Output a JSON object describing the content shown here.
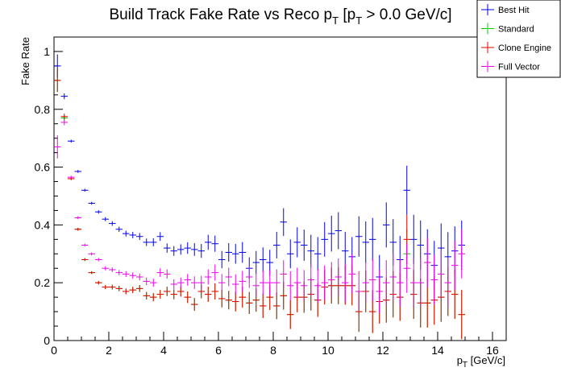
{
  "chart_data": {
    "type": "scatter",
    "title": {
      "main": "Build Track Fake Rate vs Reco p",
      "sub1": "T",
      "mid": " [p",
      "sub2": "T",
      "tail": " > 0.0 GeV/c]"
    },
    "xlabel": {
      "main": "p",
      "sub": "T",
      "tail": " [GeV/c]"
    },
    "ylabel": "Fake Rate",
    "xlim": [
      0,
      16.5
    ],
    "ylim": [
      0,
      1.05
    ],
    "xticks": [
      "0",
      "2",
      "4",
      "6",
      "8",
      "10",
      "12",
      "14",
      "16"
    ],
    "yticks": [
      "0",
      "0.2",
      "0.4",
      "0.6",
      "0.8",
      "1"
    ],
    "legend_position": "top-right",
    "bin_half_width": 0.125,
    "series": [
      {
        "name": "Best Hit",
        "color": "#0000ee",
        "x": [
          0.125,
          0.375,
          0.625,
          0.875,
          1.125,
          1.375,
          1.625,
          1.875,
          2.125,
          2.375,
          2.625,
          2.875,
          3.125,
          3.375,
          3.625,
          3.875,
          4.125,
          4.375,
          4.625,
          4.875,
          5.125,
          5.375,
          5.625,
          5.875,
          6.125,
          6.375,
          6.625,
          6.875,
          7.125,
          7.375,
          7.625,
          7.875,
          8.125,
          8.375,
          8.625,
          8.875,
          9.125,
          9.375,
          9.625,
          9.875,
          10.125,
          10.375,
          10.625,
          10.875,
          11.125,
          11.375,
          11.625,
          11.875,
          12.125,
          12.375,
          12.625,
          12.875,
          13.125,
          13.375,
          13.625,
          13.875,
          14.125,
          14.375,
          14.625,
          14.875
        ],
        "y": [
          0.95,
          0.845,
          0.69,
          0.585,
          0.52,
          0.475,
          0.445,
          0.42,
          0.405,
          0.385,
          0.37,
          0.365,
          0.36,
          0.34,
          0.34,
          0.36,
          0.32,
          0.31,
          0.315,
          0.32,
          0.315,
          0.31,
          0.34,
          0.335,
          0.28,
          0.305,
          0.3,
          0.305,
          0.25,
          0.27,
          0.28,
          0.27,
          0.33,
          0.41,
          0.3,
          0.34,
          0.33,
          0.31,
          0.3,
          0.35,
          0.37,
          0.38,
          0.31,
          0.29,
          0.36,
          0.34,
          0.35,
          0.22,
          0.4,
          0.34,
          0.28,
          0.52,
          0.35,
          0.33,
          0.3,
          0.26,
          0.32,
          0.29,
          0.31,
          0.33
        ],
        "err": [
          0.04,
          0.01,
          0.005,
          0.005,
          0.005,
          0.005,
          0.006,
          0.007,
          0.008,
          0.009,
          0.01,
          0.011,
          0.012,
          0.013,
          0.014,
          0.015,
          0.016,
          0.017,
          0.018,
          0.02,
          0.022,
          0.024,
          0.026,
          0.028,
          0.03,
          0.032,
          0.034,
          0.036,
          0.038,
          0.04,
          0.042,
          0.044,
          0.046,
          0.048,
          0.05,
          0.052,
          0.054,
          0.056,
          0.058,
          0.06,
          0.062,
          0.064,
          0.066,
          0.068,
          0.07,
          0.072,
          0.074,
          0.076,
          0.078,
          0.08,
          0.082,
          0.085,
          0.085,
          0.085,
          0.085,
          0.085,
          0.085,
          0.085,
          0.085,
          0.085
        ]
      },
      {
        "name": "Standard",
        "color": "#00cc00",
        "x": [
          0.125,
          0.375,
          0.625,
          0.875,
          1.125,
          1.375,
          1.625,
          1.875,
          2.125,
          2.375,
          2.625,
          2.875,
          3.125,
          3.375,
          3.625,
          3.875,
          4.125,
          4.375,
          4.625,
          4.875,
          5.125,
          5.375,
          5.625,
          5.875,
          6.125,
          6.375,
          6.625,
          6.875,
          7.125,
          7.375,
          7.625,
          7.875,
          8.125,
          8.375,
          8.625,
          8.875,
          9.125,
          9.375,
          9.625,
          9.875,
          10.125,
          10.375,
          10.625,
          10.875,
          11.125,
          11.375,
          11.625,
          11.875,
          12.125,
          12.375,
          12.625,
          12.875,
          13.125,
          13.375,
          13.625,
          13.875,
          14.125,
          14.375,
          14.625,
          14.875
        ],
        "y": [
          0.9,
          0.77,
          0.56,
          0.385,
          0.28,
          0.235,
          0.2,
          0.185,
          0.185,
          0.18,
          0.17,
          0.175,
          0.18,
          0.155,
          0.15,
          0.16,
          0.17,
          0.16,
          0.17,
          0.15,
          0.125,
          0.17,
          0.16,
          0.17,
          0.145,
          0.14,
          0.135,
          0.15,
          0.13,
          0.14,
          0.12,
          0.15,
          0.12,
          0.155,
          0.09,
          0.15,
          0.15,
          0.16,
          0.14,
          0.185,
          0.19,
          0.19,
          0.19,
          0.19,
          0.1,
          0.17,
          0.1,
          0.135,
          0.14,
          0.16,
          0.15,
          0.3,
          0.16,
          0.13,
          0.13,
          0.14,
          0.15,
          0.17,
          0.16,
          0.09
        ],
        "err": [
          0.04,
          0.01,
          0.005,
          0.005,
          0.005,
          0.005,
          0.006,
          0.007,
          0.008,
          0.009,
          0.01,
          0.011,
          0.012,
          0.013,
          0.014,
          0.015,
          0.016,
          0.017,
          0.018,
          0.02,
          0.022,
          0.024,
          0.026,
          0.028,
          0.03,
          0.032,
          0.034,
          0.036,
          0.038,
          0.04,
          0.042,
          0.044,
          0.046,
          0.048,
          0.05,
          0.052,
          0.054,
          0.056,
          0.058,
          0.06,
          0.062,
          0.064,
          0.066,
          0.068,
          0.07,
          0.072,
          0.074,
          0.076,
          0.078,
          0.08,
          0.082,
          0.085,
          0.085,
          0.085,
          0.085,
          0.085,
          0.085,
          0.085,
          0.085,
          0.085
        ]
      },
      {
        "name": "Clone Engine",
        "color": "#ee0000",
        "x": [
          0.125,
          0.375,
          0.625,
          0.875,
          1.125,
          1.375,
          1.625,
          1.875,
          2.125,
          2.375,
          2.625,
          2.875,
          3.125,
          3.375,
          3.625,
          3.875,
          4.125,
          4.375,
          4.625,
          4.875,
          5.125,
          5.375,
          5.625,
          5.875,
          6.125,
          6.375,
          6.625,
          6.875,
          7.125,
          7.375,
          7.625,
          7.875,
          8.125,
          8.375,
          8.625,
          8.875,
          9.125,
          9.375,
          9.625,
          9.875,
          10.125,
          10.375,
          10.625,
          10.875,
          11.125,
          11.375,
          11.625,
          11.875,
          12.125,
          12.375,
          12.625,
          12.875,
          13.125,
          13.375,
          13.625,
          13.875,
          14.125,
          14.375,
          14.625,
          14.875
        ],
        "y": [
          0.9,
          0.775,
          0.56,
          0.385,
          0.28,
          0.235,
          0.2,
          0.185,
          0.185,
          0.18,
          0.17,
          0.175,
          0.18,
          0.155,
          0.15,
          0.16,
          0.17,
          0.16,
          0.17,
          0.15,
          0.125,
          0.17,
          0.16,
          0.17,
          0.145,
          0.14,
          0.135,
          0.15,
          0.13,
          0.14,
          0.12,
          0.15,
          0.12,
          0.155,
          0.09,
          0.15,
          0.15,
          0.16,
          0.14,
          0.185,
          0.19,
          0.19,
          0.19,
          0.19,
          0.1,
          0.17,
          0.1,
          0.135,
          0.14,
          0.16,
          0.15,
          0.35,
          0.16,
          0.13,
          0.13,
          0.14,
          0.15,
          0.17,
          0.16,
          0.09
        ],
        "err": [
          0.04,
          0.01,
          0.005,
          0.005,
          0.005,
          0.005,
          0.006,
          0.007,
          0.008,
          0.009,
          0.01,
          0.011,
          0.012,
          0.013,
          0.014,
          0.015,
          0.016,
          0.017,
          0.018,
          0.02,
          0.022,
          0.024,
          0.026,
          0.028,
          0.03,
          0.032,
          0.034,
          0.036,
          0.038,
          0.04,
          0.042,
          0.044,
          0.046,
          0.048,
          0.05,
          0.052,
          0.054,
          0.056,
          0.058,
          0.06,
          0.062,
          0.064,
          0.066,
          0.068,
          0.07,
          0.072,
          0.074,
          0.076,
          0.078,
          0.08,
          0.082,
          0.085,
          0.085,
          0.085,
          0.085,
          0.085,
          0.085,
          0.085,
          0.085,
          0.085
        ]
      },
      {
        "name": "Full Vector",
        "color": "#ee00ee",
        "x": [
          0.125,
          0.375,
          0.625,
          0.875,
          1.125,
          1.375,
          1.625,
          1.875,
          2.125,
          2.375,
          2.625,
          2.875,
          3.125,
          3.375,
          3.625,
          3.875,
          4.125,
          4.375,
          4.625,
          4.875,
          5.125,
          5.375,
          5.625,
          5.875,
          6.125,
          6.375,
          6.625,
          6.875,
          7.125,
          7.375,
          7.625,
          7.875,
          8.125,
          8.375,
          8.625,
          8.875,
          9.125,
          9.375,
          9.625,
          9.875,
          10.125,
          10.375,
          10.625,
          10.875,
          11.125,
          11.375,
          11.625,
          11.875,
          12.125,
          12.375,
          12.625,
          12.875,
          13.125,
          13.375,
          13.625,
          13.875,
          14.125,
          14.375,
          14.625,
          14.875
        ],
        "y": [
          0.67,
          0.755,
          0.565,
          0.425,
          0.33,
          0.3,
          0.28,
          0.25,
          0.245,
          0.235,
          0.23,
          0.225,
          0.22,
          0.205,
          0.2,
          0.235,
          0.23,
          0.195,
          0.2,
          0.21,
          0.2,
          0.2,
          0.22,
          0.235,
          0.2,
          0.22,
          0.195,
          0.205,
          0.22,
          0.19,
          0.2,
          0.2,
          0.2,
          0.23,
          0.19,
          0.2,
          0.19,
          0.21,
          0.19,
          0.2,
          0.21,
          0.22,
          0.2,
          0.23,
          0.17,
          0.2,
          0.21,
          0.17,
          0.2,
          0.22,
          0.2,
          0.25,
          0.2,
          0.2,
          0.27,
          0.21,
          0.23,
          0.2,
          0.26,
          0.3
        ],
        "err": [
          0.04,
          0.01,
          0.005,
          0.005,
          0.005,
          0.005,
          0.006,
          0.007,
          0.008,
          0.009,
          0.01,
          0.011,
          0.012,
          0.013,
          0.014,
          0.015,
          0.016,
          0.017,
          0.018,
          0.02,
          0.022,
          0.024,
          0.026,
          0.028,
          0.03,
          0.032,
          0.034,
          0.036,
          0.038,
          0.04,
          0.042,
          0.044,
          0.046,
          0.048,
          0.05,
          0.052,
          0.054,
          0.056,
          0.058,
          0.06,
          0.062,
          0.064,
          0.066,
          0.068,
          0.07,
          0.072,
          0.074,
          0.076,
          0.078,
          0.08,
          0.082,
          0.085,
          0.085,
          0.085,
          0.085,
          0.085,
          0.085,
          0.085,
          0.085,
          0.085
        ]
      }
    ]
  }
}
